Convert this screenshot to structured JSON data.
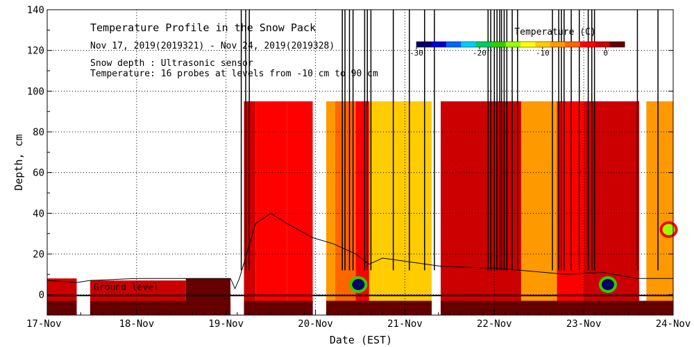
{
  "chart_data": {
    "type": "heatmap",
    "title": "Temperature Profile in the Snow Pack",
    "subtitle": "Nov 17, 2019(2019321) - Nov 24, 2019(2019328)",
    "notes": [
      "Snow depth : Ultrasonic sensor",
      "Temperature: 16 probes at levels from -10 cm to 90 cm"
    ],
    "ground_label": "Ground level",
    "xlabel": "Date (EST)",
    "ylabel": "Depth, cm",
    "x_categories": [
      "17-Nov",
      "18-Nov",
      "19-Nov",
      "20-Nov",
      "21-Nov",
      "22-Nov",
      "23-Nov",
      "24-Nov"
    ],
    "xlim": [
      0,
      7
    ],
    "ylim": [
      -10,
      140
    ],
    "y_ticks": [
      0,
      20,
      40,
      60,
      80,
      100,
      120,
      140
    ],
    "grid": true,
    "colorbar": {
      "label": "Temperature (C)",
      "range": [
        -30,
        3
      ],
      "ticks": [
        -30,
        -20,
        -10,
        0
      ],
      "tick_labels": [
        "-30",
        "-20",
        "-10",
        "0"
      ],
      "colors": [
        "#000066",
        "#0000cc",
        "#0066ff",
        "#00ccff",
        "#00cc66",
        "#33cc00",
        "#99ff00",
        "#ffff00",
        "#ffcc00",
        "#ff9900",
        "#ff6600",
        "#ff0000",
        "#cc0000",
        "#660000"
      ]
    },
    "regions": [
      {
        "x0": 0.0,
        "x1": 0.33,
        "y0": -10,
        "y1": 8,
        "value": -1
      },
      {
        "x0": 0.48,
        "x1": 1.55,
        "y0": -10,
        "y1": 7,
        "value": -1
      },
      {
        "x0": 1.55,
        "x1": 2.05,
        "y0": -10,
        "y1": 8,
        "value": 1
      },
      {
        "x0": 2.2,
        "x1": 2.33,
        "y0": -10,
        "y1": 95,
        "value": -1
      },
      {
        "x0": 2.33,
        "x1": 2.68,
        "y0": -10,
        "y1": 95,
        "value": -3
      },
      {
        "x0": 2.68,
        "x1": 2.97,
        "y0": -10,
        "y1": 95,
        "value": -2
      },
      {
        "x0": 3.12,
        "x1": 3.22,
        "y0": -10,
        "y1": 95,
        "value": -8
      },
      {
        "x0": 3.22,
        "x1": 3.45,
        "y0": -10,
        "y1": 95,
        "value": -6
      },
      {
        "x0": 3.45,
        "x1": 3.6,
        "y0": -10,
        "y1": 95,
        "value": -4
      },
      {
        "x0": 3.6,
        "x1": 3.75,
        "y0": -10,
        "y1": 95,
        "value": -9
      },
      {
        "x0": 3.75,
        "x1": 4.3,
        "y0": -10,
        "y1": 95,
        "value": -9
      },
      {
        "x0": 4.4,
        "x1": 5.3,
        "y0": -10,
        "y1": 95,
        "value": -1
      },
      {
        "x0": 5.3,
        "x1": 5.7,
        "y0": -10,
        "y1": 95,
        "value": -8
      },
      {
        "x0": 5.7,
        "x1": 6.0,
        "y0": -10,
        "y1": 95,
        "value": -4
      },
      {
        "x0": 6.0,
        "x1": 6.62,
        "y0": -10,
        "y1": 95,
        "value": -1
      },
      {
        "x0": 6.7,
        "x1": 7.0,
        "y0": -10,
        "y1": 95,
        "value": -8
      },
      {
        "x0": 0.0,
        "x1": 7.0,
        "y0": -10,
        "y1": -3,
        "value": 1
      }
    ],
    "cold_spots": [
      {
        "x": 3.48,
        "y": 5,
        "value": -28
      },
      {
        "x": 6.27,
        "y": 5,
        "value": -28
      },
      {
        "x": 6.95,
        "y": 32,
        "value": -14
      }
    ],
    "gaps": [
      [
        0.33,
        0.48
      ],
      [
        2.05,
        2.2
      ],
      [
        2.97,
        3.12
      ],
      [
        4.3,
        4.4
      ]
    ],
    "snow_depth": [
      [
        0.0,
        7
      ],
      [
        0.33,
        6
      ],
      [
        0.48,
        7
      ],
      [
        1.0,
        8
      ],
      [
        1.55,
        8
      ],
      [
        2.05,
        8
      ],
      [
        2.1,
        3
      ],
      [
        2.15,
        8
      ],
      [
        2.33,
        35
      ],
      [
        2.5,
        40
      ],
      [
        2.68,
        35
      ],
      [
        2.97,
        28
      ],
      [
        3.2,
        25
      ],
      [
        3.45,
        20
      ],
      [
        3.6,
        15
      ],
      [
        3.75,
        18
      ],
      [
        4.4,
        14
      ],
      [
        5.0,
        13
      ],
      [
        5.3,
        12
      ],
      [
        5.8,
        10
      ],
      [
        6.2,
        11
      ],
      [
        6.6,
        8
      ],
      [
        6.7,
        8
      ],
      [
        7.0,
        8
      ]
    ],
    "spikes_x": [
      2.17,
      2.22,
      2.26,
      3.3,
      3.33,
      3.38,
      3.42,
      3.55,
      3.58,
      3.62,
      3.87,
      4.05,
      4.22,
      4.33,
      4.93,
      4.96,
      5.0,
      5.03,
      5.06,
      5.08,
      5.11,
      5.14,
      5.2,
      5.26,
      5.65,
      5.72,
      5.75,
      5.78,
      5.86,
      5.95,
      6.05,
      6.09,
      6.12,
      6.6,
      6.83
    ]
  }
}
